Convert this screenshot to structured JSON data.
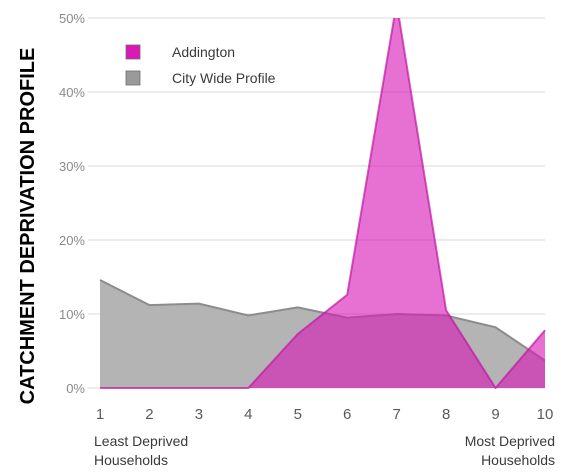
{
  "chart_data": {
    "type": "area",
    "ylabel": "CATCHMENT DEPRIVATION PROFILE",
    "x": [
      1,
      2,
      3,
      4,
      5,
      6,
      7,
      8,
      9,
      10
    ],
    "x_tick_labels": [
      "1",
      "2",
      "3",
      "4",
      "5",
      "6",
      "7",
      "8",
      "9",
      "10"
    ],
    "y_ticks": [
      0,
      10,
      20,
      30,
      40,
      50
    ],
    "y_tick_labels": [
      "0%",
      "10%",
      "20%",
      "30%",
      "40%",
      "50%"
    ],
    "ylim": [
      0,
      50
    ],
    "grid": true,
    "legend_position": "top-left",
    "x_start_label": [
      "Least Deprived",
      "Households"
    ],
    "x_end_label": [
      "Most Deprived",
      "Households"
    ],
    "series": [
      {
        "name": "City Wide Profile",
        "color": "#b0b0b0",
        "edge_color": "#8c8c8c",
        "values": [
          14.6,
          11.2,
          11.4,
          9.8,
          10.9,
          9.5,
          10.0,
          9.8,
          8.2,
          3.7
        ]
      },
      {
        "name": "Addington",
        "color": "#d91ab6",
        "edge_color": "#c0169f",
        "values": [
          0,
          0,
          0,
          0,
          7.3,
          12.6,
          52,
          10.5,
          0,
          7.8
        ]
      }
    ],
    "legend": [
      {
        "label": "Addington",
        "color": "#d91ab6"
      },
      {
        "label": "City Wide Profile",
        "color": "#9a9a9a"
      }
    ]
  }
}
